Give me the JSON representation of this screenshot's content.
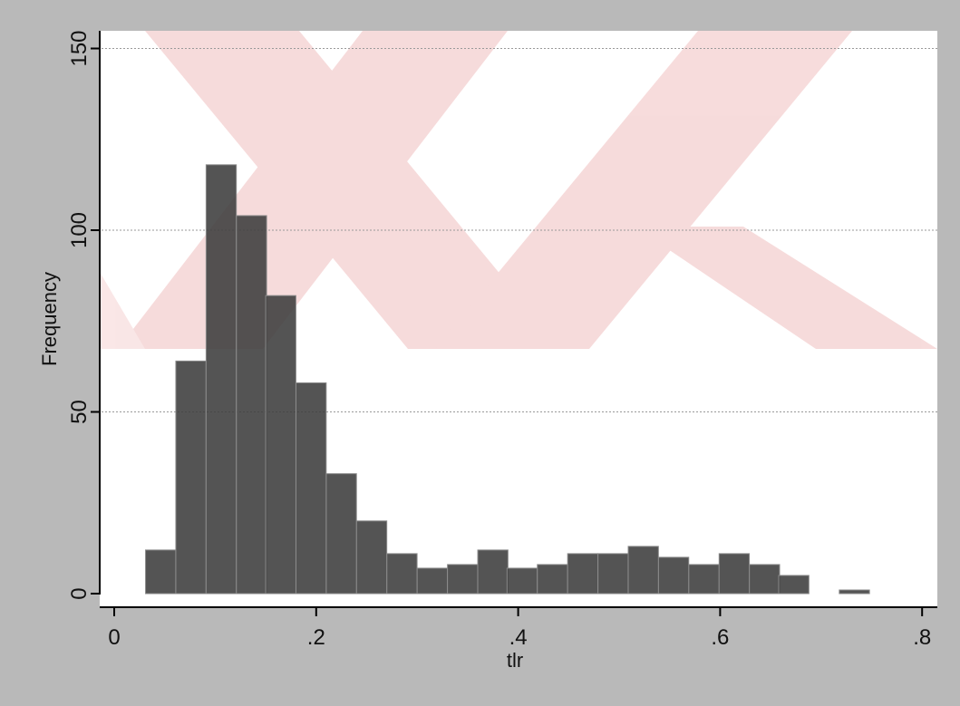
{
  "chart_data": {
    "type": "bar",
    "title": "",
    "xlabel": "tlr",
    "ylabel": "Frequency",
    "xlim": [
      0,
      0.8
    ],
    "ylim": [
      0,
      150
    ],
    "x_ticks": [
      {
        "value": 0,
        "label": "0"
      },
      {
        "value": 0.2,
        "label": ".2"
      },
      {
        "value": 0.4,
        "label": ".4"
      },
      {
        "value": 0.6,
        "label": ".6"
      },
      {
        "value": 0.8,
        "label": ".8"
      }
    ],
    "y_ticks": [
      {
        "value": 0,
        "label": "0"
      },
      {
        "value": 50,
        "label": "50"
      },
      {
        "value": 100,
        "label": "100"
      },
      {
        "value": 150,
        "label": "150"
      }
    ],
    "grid": "horizontal",
    "bin_width": 0.0299,
    "bins": [
      {
        "x_start": 0.031,
        "value": 12
      },
      {
        "x_start": 0.061,
        "value": 64
      },
      {
        "x_start": 0.091,
        "value": 118
      },
      {
        "x_start": 0.121,
        "value": 104
      },
      {
        "x_start": 0.15,
        "value": 82
      },
      {
        "x_start": 0.18,
        "value": 58
      },
      {
        "x_start": 0.21,
        "value": 33
      },
      {
        "x_start": 0.24,
        "value": 20
      },
      {
        "x_start": 0.27,
        "value": 11
      },
      {
        "x_start": 0.3,
        "value": 7
      },
      {
        "x_start": 0.33,
        "value": 8
      },
      {
        "x_start": 0.36,
        "value": 12
      },
      {
        "x_start": 0.389,
        "value": 7
      },
      {
        "x_start": 0.419,
        "value": 8
      },
      {
        "x_start": 0.449,
        "value": 11
      },
      {
        "x_start": 0.479,
        "value": 11
      },
      {
        "x_start": 0.509,
        "value": 13
      },
      {
        "x_start": 0.539,
        "value": 10
      },
      {
        "x_start": 0.569,
        "value": 8
      },
      {
        "x_start": 0.599,
        "value": 11
      },
      {
        "x_start": 0.629,
        "value": 8
      },
      {
        "x_start": 0.658,
        "value": 5
      },
      {
        "x_start": 0.688,
        "value": 0
      },
      {
        "x_start": 0.718,
        "value": 1
      }
    ],
    "colors": {
      "bar": "#3c3c3c",
      "bar_edge": "#8a8a8a",
      "plot_background": "#ffffff",
      "outer_background": "#b9b9b9",
      "watermark": "#f7dcdc"
    }
  }
}
